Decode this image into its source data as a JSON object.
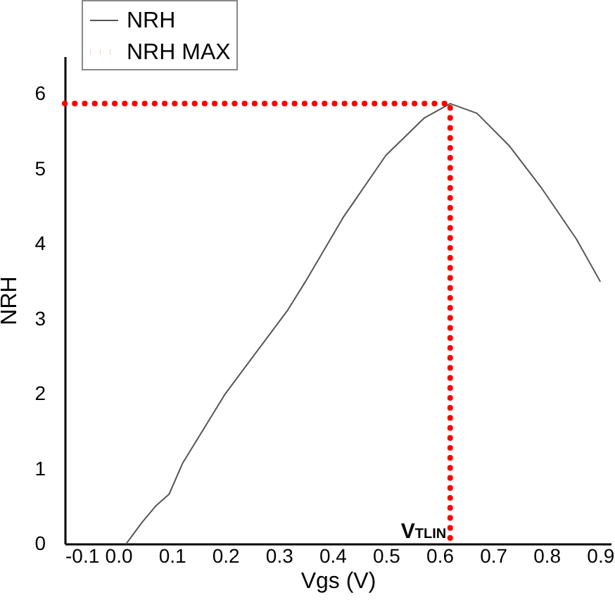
{
  "chart_data": {
    "type": "line",
    "xlabel": "Vgs (V)",
    "ylabel": "NRH",
    "xlim": [
      -0.1,
      0.92
    ],
    "ylim": [
      0,
      6.5
    ],
    "xticks": [
      {
        "value": -0.1,
        "label": "-0.1"
      },
      {
        "value": 0,
        "label": "0.0"
      },
      0.1,
      0.2,
      0.3,
      0.4,
      0.5,
      0.6,
      0.7,
      0.8,
      0.9
    ],
    "yticks": [
      0,
      1,
      2,
      3,
      4,
      5,
      6
    ],
    "series": [
      {
        "name": "NRH",
        "color": "#555555",
        "line_style": "solid",
        "x": [
          0.015,
          0.044,
          0.071,
          0.095,
          0.12,
          0.2,
          0.317,
          0.35,
          0.42,
          0.5,
          0.572,
          0.62,
          0.67,
          0.73,
          0.79,
          0.856,
          0.9
        ],
        "values": [
          0,
          0.28,
          0.51,
          0.66,
          1.07,
          2.0,
          3.12,
          3.5,
          4.35,
          5.18,
          5.68,
          5.87,
          5.74,
          5.31,
          4.75,
          4.06,
          3.5
        ]
      },
      {
        "name": "NRH MAX",
        "color": "#ff0000",
        "line_style": "dotted",
        "x": [
          -0.1,
          0.62,
          0.62
        ],
        "values": [
          5.87,
          5.87,
          0
        ]
      }
    ],
    "annotations": [
      {
        "text": "V$_{TLIN}$",
        "x": 0.62,
        "y": 0
      }
    ],
    "legend": "top left",
    "grid": false
  }
}
